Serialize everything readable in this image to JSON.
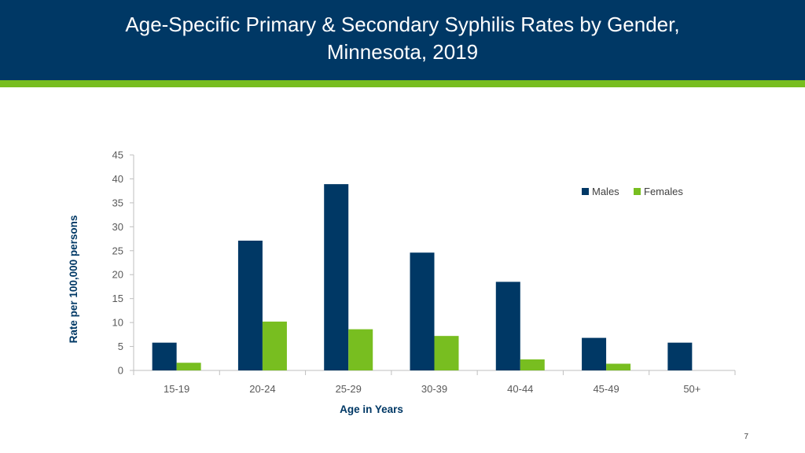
{
  "slide": {
    "title_line1": "Age-Specific Primary & Secondary Syphilis Rates by Gender,",
    "title_line2": "Minnesota, 2019",
    "page_number": "7",
    "colors": {
      "header": "#003865",
      "accent": "#78be20"
    }
  },
  "chart_data": {
    "type": "bar",
    "xlabel": "Age in Years",
    "ylabel": "Rate per 100,000 persons",
    "ylim": [
      0,
      45
    ],
    "yticks": [
      0,
      5,
      10,
      15,
      20,
      25,
      30,
      35,
      40,
      45
    ],
    "categories": [
      "15-19",
      "20-24",
      "25-29",
      "30-39",
      "40-44",
      "45-49",
      "50+"
    ],
    "series": [
      {
        "name": "Males",
        "color": "#003865",
        "values": [
          5.8,
          27.1,
          38.9,
          24.6,
          18.5,
          6.8,
          5.8
        ]
      },
      {
        "name": "Females",
        "color": "#78be20",
        "values": [
          1.6,
          10.2,
          8.6,
          7.2,
          2.3,
          1.4,
          null
        ]
      }
    ],
    "legend_position": "top-right",
    "grid": false
  }
}
